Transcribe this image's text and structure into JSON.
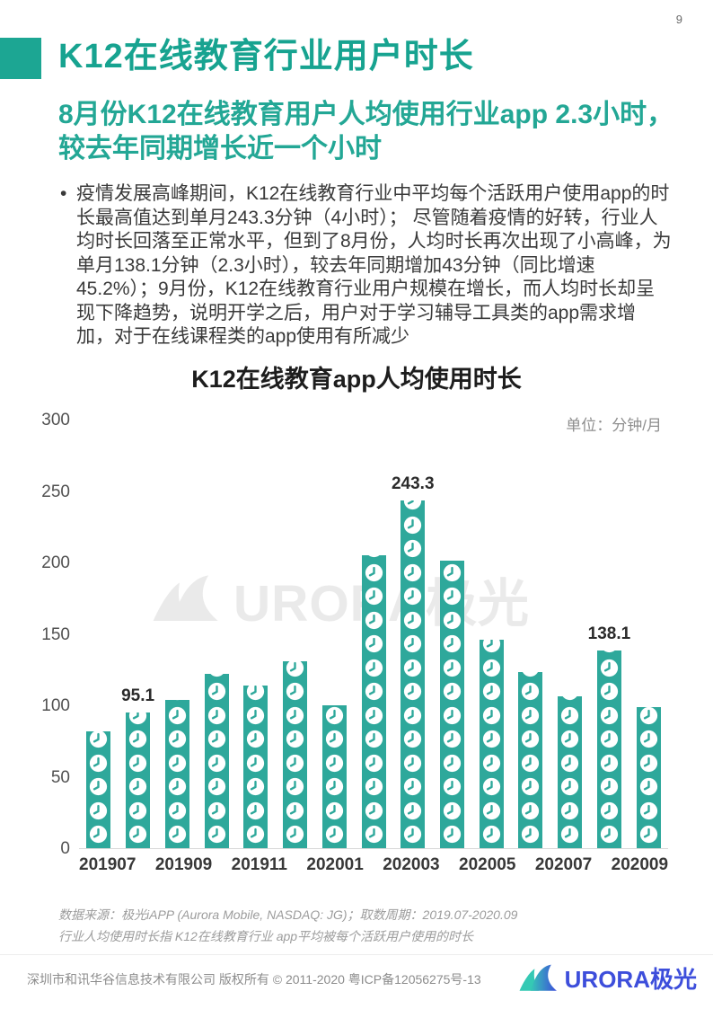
{
  "page": {
    "number": "9"
  },
  "header": {
    "title": "K12在线教育行业用户时长",
    "subtitle": "8月份K12在线教育用户人均使用行业app 2.3小时，较去年同期增长近一个小时"
  },
  "body": {
    "bullet": "•",
    "paragraph": "疫情发展高峰期间，K12在线教育行业中平均每个活跃用户使用app的时长最高值达到单月243.3分钟（4小时）； 尽管随着疫情的好转，行业人均时长回落至正常水平，但到了8月份，人均时长再次出现了小高峰，为单月138.1分钟（2.3小时），较去年同期增加43分钟（同比增速45.2%）；9月份，K12在线教育行业用户规模在增长，而人均时长却呈现下降趋势，说明开学之后，用户对于学习辅导工具类的app需求增加，对于在线课程类的app使用有所减少"
  },
  "chart_data": {
    "type": "bar",
    "title": "K12在线教育app人均使用时长",
    "unit_label": "单位：分钟/月",
    "categories": [
      "201907",
      "201908",
      "201909",
      "201910",
      "201911",
      "201912",
      "202001",
      "202002",
      "202003",
      "202004",
      "202005",
      "202006",
      "202007",
      "202008",
      "202009"
    ],
    "values": [
      82,
      95.1,
      104,
      122,
      114,
      131,
      100,
      205,
      243.3,
      201,
      146,
      123,
      106,
      138.1,
      99
    ],
    "labeled_points": {
      "201908": "95.1",
      "202003": "243.3",
      "202008": "138.1"
    },
    "x_tick_labels": [
      "201907",
      "201909",
      "201911",
      "202001",
      "202003",
      "202005",
      "202007",
      "202009"
    ],
    "y_ticks": [
      0,
      50,
      100,
      150,
      200,
      250,
      300
    ],
    "ylim": [
      0,
      300
    ],
    "grid": false,
    "legend": "none",
    "bar_color": "#2EA89B",
    "icon": "clock-icon"
  },
  "watermark": {
    "text": "URORA极光"
  },
  "footnotes": {
    "line1": "数据来源：极光iAPP (Aurora Mobile, NASDAQ: JG)；取数周期：2019.07-2020.09",
    "line2": "行业人均使用时长指 K12在线教育行业 app平均被每个活跃用户使用的时长"
  },
  "footer": {
    "copyright": "深圳市和讯华谷信息技术有限公司 版权所有 © 2011-2020 粤ICP备12056275号-13",
    "logo_text": "URORA极光"
  },
  "colors": {
    "accent_teal": "#1CA693",
    "bar_teal": "#2EA89B",
    "logo_blue": "#3D4EDB",
    "watermark_gray": "#EAEAEA"
  }
}
